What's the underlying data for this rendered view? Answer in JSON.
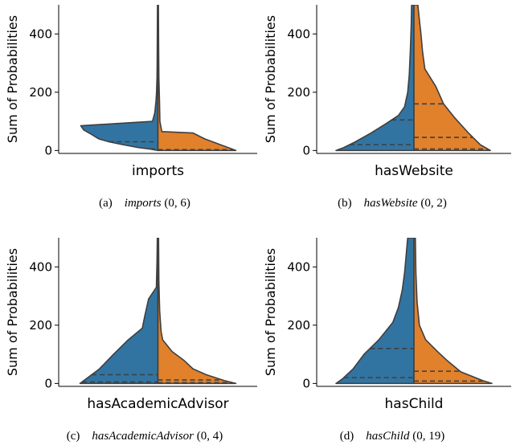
{
  "colors": {
    "left": "#3274a1",
    "right": "#e1812c",
    "outline": "#3f3f3f"
  },
  "chart_data": [
    {
      "type": "violin",
      "split": true,
      "xlabel": "imports",
      "ylabel": "Sum of Probabilities",
      "ylim": [
        -10,
        500
      ],
      "yticks": [
        0,
        200,
        400
      ],
      "caption": {
        "prefix": "(a)",
        "relation": "imports",
        "range": "(0, 6)"
      },
      "left": {
        "profile": [
          [
            0,
            0
          ],
          [
            5,
            0.1
          ],
          [
            10,
            0.25
          ],
          [
            20,
            0.45
          ],
          [
            30,
            0.63
          ],
          [
            40,
            0.76
          ],
          [
            55,
            0.85
          ],
          [
            70,
            0.95
          ],
          [
            85,
            0.99
          ],
          [
            100,
            0.07
          ],
          [
            130,
            0.04
          ],
          [
            170,
            0.025
          ],
          [
            200,
            0.018
          ],
          [
            250,
            0.012
          ],
          [
            300,
            0.01
          ],
          [
            400,
            0.008
          ],
          [
            500,
            0.006
          ]
        ],
        "quartiles": [
          5,
          30
        ]
      },
      "right": {
        "profile": [
          [
            0,
            1.0
          ],
          [
            5,
            0.95
          ],
          [
            20,
            0.8
          ],
          [
            40,
            0.6
          ],
          [
            60,
            0.45
          ],
          [
            65,
            0.05
          ],
          [
            100,
            0.025
          ],
          [
            170,
            0.02
          ],
          [
            250,
            0.012
          ],
          [
            350,
            0.009
          ],
          [
            500,
            0.006
          ]
        ],
        "quartiles": [
          3
        ]
      }
    },
    {
      "type": "violin",
      "split": true,
      "xlabel": "hasWebsite",
      "ylabel": "Sum of Probabilities",
      "ylim": [
        -10,
        500
      ],
      "yticks": [
        0,
        200,
        400
      ],
      "caption": {
        "prefix": "(b)",
        "relation": "hasWebsite",
        "range": "(0, 2)"
      },
      "left": {
        "profile": [
          [
            0,
            1.0
          ],
          [
            10,
            0.9
          ],
          [
            30,
            0.75
          ],
          [
            60,
            0.55
          ],
          [
            90,
            0.37
          ],
          [
            120,
            0.2
          ],
          [
            150,
            0.12
          ],
          [
            200,
            0.08
          ],
          [
            260,
            0.06
          ],
          [
            350,
            0.045
          ],
          [
            430,
            0.035
          ],
          [
            500,
            0.03
          ]
        ],
        "quartiles": [
          20,
          105
        ]
      },
      "right": {
        "profile": [
          [
            0,
            0.98
          ],
          [
            20,
            0.85
          ],
          [
            60,
            0.7
          ],
          [
            110,
            0.53
          ],
          [
            160,
            0.38
          ],
          [
            220,
            0.28
          ],
          [
            280,
            0.14
          ],
          [
            340,
            0.11
          ],
          [
            400,
            0.09
          ],
          [
            460,
            0.065
          ],
          [
            500,
            0.05
          ]
        ],
        "quartiles": [
          5,
          45,
          160
        ]
      }
    },
    {
      "type": "violin",
      "split": true,
      "xlabel": "hasAcademicAdvisor",
      "ylabel": "Sum of Probabilities",
      "ylim": [
        -10,
        500
      ],
      "yticks": [
        0,
        200,
        400
      ],
      "caption": {
        "prefix": "(c)",
        "relation": "hasAcademicAdvisor",
        "range": "(0, 4)"
      },
      "left": {
        "profile": [
          [
            0,
            1.0
          ],
          [
            20,
            0.9
          ],
          [
            50,
            0.75
          ],
          [
            100,
            0.57
          ],
          [
            150,
            0.38
          ],
          [
            190,
            0.2
          ],
          [
            230,
            0.17
          ],
          [
            290,
            0.12
          ],
          [
            330,
            0.02
          ],
          [
            420,
            0.012
          ],
          [
            500,
            0.008
          ]
        ],
        "quartiles": [
          5,
          30
        ]
      },
      "right": {
        "profile": [
          [
            0,
            1.0
          ],
          [
            10,
            0.85
          ],
          [
            30,
            0.62
          ],
          [
            50,
            0.45
          ],
          [
            80,
            0.33
          ],
          [
            110,
            0.18
          ],
          [
            150,
            0.06
          ],
          [
            180,
            0.04
          ],
          [
            250,
            0.022
          ],
          [
            350,
            0.012
          ],
          [
            500,
            0.008
          ]
        ],
        "quartiles": [
          3,
          12
        ]
      }
    },
    {
      "type": "violin",
      "split": true,
      "xlabel": "hasChild",
      "ylabel": "Sum of Probabilities",
      "ylim": [
        -10,
        500
      ],
      "yticks": [
        0,
        200,
        400
      ],
      "caption": {
        "prefix": "(d)",
        "relation": "hasChild",
        "range": "(0, 19)"
      },
      "left": {
        "profile": [
          [
            0,
            1.0
          ],
          [
            15,
            0.92
          ],
          [
            50,
            0.78
          ],
          [
            100,
            0.64
          ],
          [
            150,
            0.45
          ],
          [
            210,
            0.27
          ],
          [
            260,
            0.2
          ],
          [
            320,
            0.15
          ],
          [
            380,
            0.12
          ],
          [
            440,
            0.1
          ],
          [
            500,
            0.08
          ]
        ],
        "quartiles": [
          20,
          120
        ]
      },
      "right": {
        "profile": [
          [
            0,
            1.0
          ],
          [
            10,
            0.88
          ],
          [
            40,
            0.6
          ],
          [
            80,
            0.42
          ],
          [
            110,
            0.3
          ],
          [
            150,
            0.15
          ],
          [
            200,
            0.07
          ],
          [
            280,
            0.04
          ],
          [
            380,
            0.025
          ],
          [
            500,
            0.018
          ]
        ],
        "quartiles": [
          8,
          42
        ]
      }
    }
  ]
}
